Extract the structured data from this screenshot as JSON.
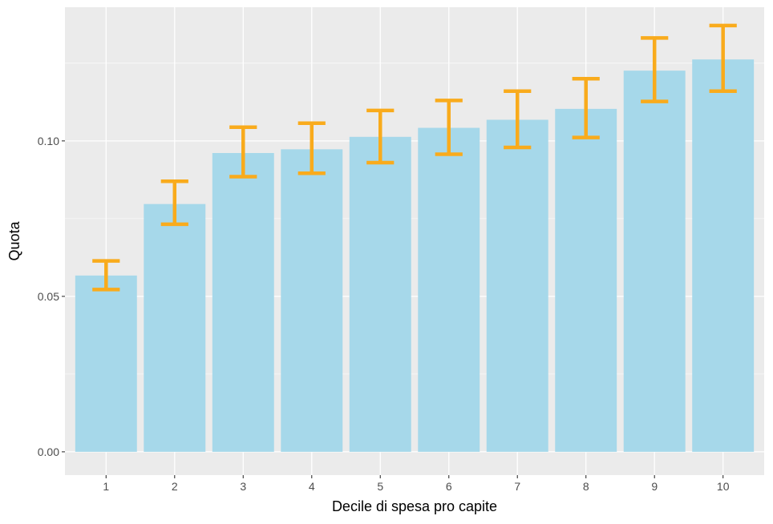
{
  "chart_data": {
    "type": "bar",
    "title": "",
    "xlabel": "Decile di spesa pro capite",
    "ylabel": "Quota",
    "categories": [
      "1",
      "2",
      "3",
      "4",
      "5",
      "6",
      "7",
      "8",
      "9",
      "10"
    ],
    "values": [
      0.0567,
      0.0797,
      0.0961,
      0.0973,
      0.1013,
      0.1042,
      0.1068,
      0.1103,
      0.1226,
      0.1262
    ],
    "error_low": [
      0.0522,
      0.0732,
      0.0885,
      0.0896,
      0.093,
      0.0957,
      0.0979,
      0.1011,
      0.1127,
      0.116
    ],
    "error_high": [
      0.0614,
      0.087,
      0.1044,
      0.1057,
      0.1098,
      0.113,
      0.116,
      0.12,
      0.1331,
      0.1371
    ],
    "ylim": [
      -0.0075,
      0.143
    ],
    "yticks": [
      0.0,
      0.05,
      0.1
    ],
    "ytick_labels": [
      "0.00",
      "0.05",
      "0.10"
    ],
    "grid": true,
    "colors": {
      "bar": "#a6d8ea",
      "error_bar": "#f9ab1c",
      "panel": "#ebebeb",
      "grid": "#ffffff"
    }
  }
}
